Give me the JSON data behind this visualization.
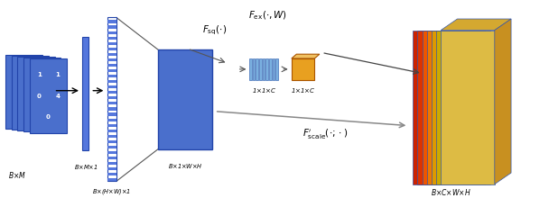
{
  "bg_color": "#ffffff",
  "tile_color": "#4a6fcc",
  "tile_edge": "#2244aa",
  "bar1_color": "#5577dd",
  "bar2_color": "#5577dd",
  "sq_color": "#4a6fcc",
  "fc1_color": "#7ab0e0",
  "fc2_color": "#e8a020",
  "layer_colors": [
    "#cc2200",
    "#dd3300",
    "#ee5500",
    "#ee7700",
    "#dd9900",
    "#ccaa00",
    "#ddbb44"
  ],
  "top_face_color": "#d4a830",
  "right_face_color": "#c89020",
  "top_face2_color": "#f0c060",
  "fsq_label": "$F_{\\rm sq}(\\cdot)$",
  "fex_label": "$F_{\\rm ex}(\\cdot, W)$",
  "fscale_label": "$F^{\\prime}_{\\rm scale}(\\cdot;\\cdot)$",
  "label_bxm": "B$\\times$M",
  "label_bxmx1": "B$\\times$M$\\times$1",
  "label_bxhwx1": "B$\\times$(H$\\times$W)$\\times$1",
  "label_bx1xwxh": "B$\\times$1$\\times$W$\\times$H",
  "label_1x1xc": "1$\\times$1$\\times$C",
  "label_out": "B$\\times$C$\\times$W$\\times$H"
}
